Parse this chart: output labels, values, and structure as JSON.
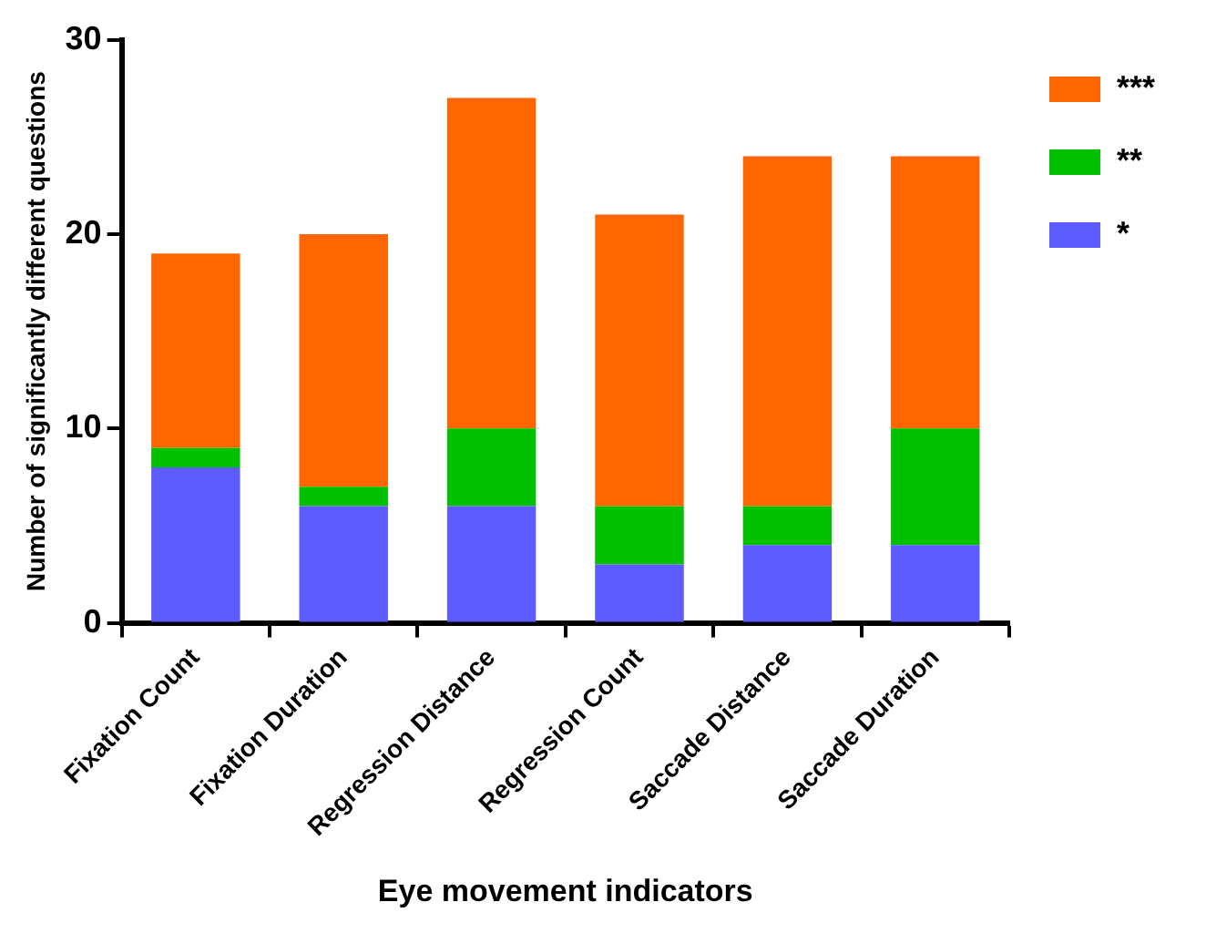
{
  "chart_data": {
    "type": "bar",
    "stacked": true,
    "xlabel": "Eye movement indicators",
    "ylabel": "Number of significantly different questions",
    "categories": [
      "Fixation Count",
      "Fixation Duration",
      "Regression Distance",
      "Regression Count",
      "Saccade Distance",
      "Saccade Duration"
    ],
    "series": [
      {
        "name": "*",
        "color": "#5b5bff",
        "values": [
          8,
          6,
          6,
          3,
          4,
          4
        ]
      },
      {
        "name": "**",
        "color": "#00c000",
        "values": [
          1,
          1,
          4,
          3,
          2,
          6
        ]
      },
      {
        "name": "***",
        "color": "#ff6600",
        "values": [
          10,
          13,
          17,
          15,
          18,
          14
        ]
      }
    ],
    "ylim": [
      0,
      30
    ],
    "yticks": [
      0,
      10,
      20,
      30
    ],
    "grid": false,
    "legend": "top right"
  }
}
